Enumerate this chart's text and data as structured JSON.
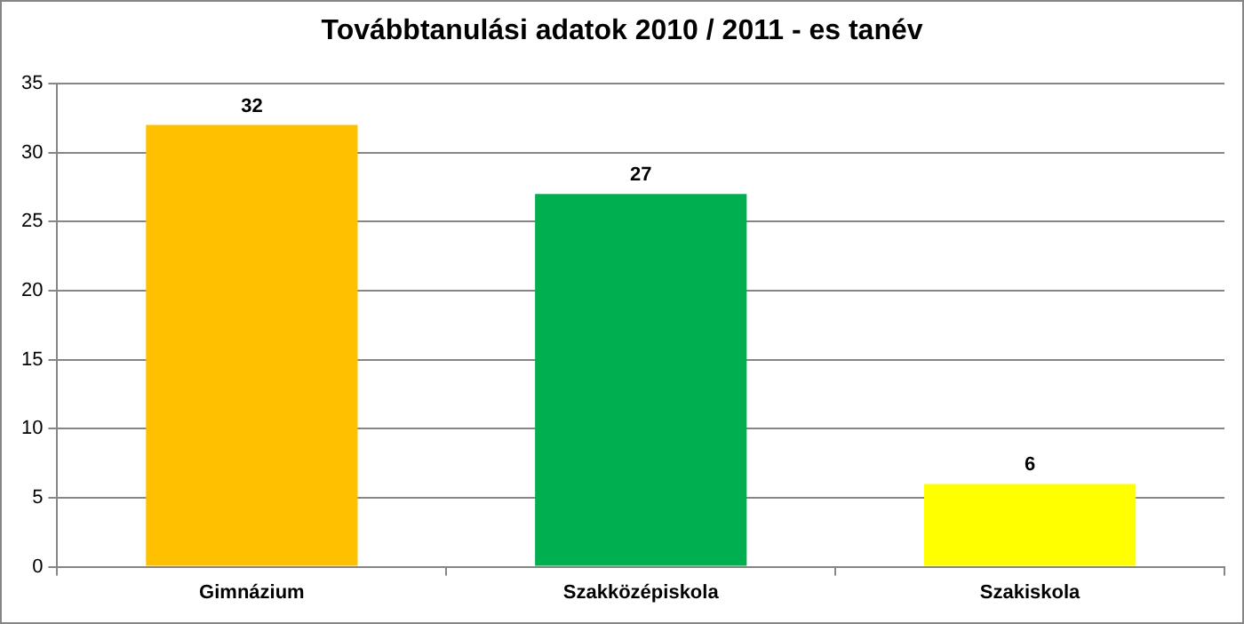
{
  "chart_data": {
    "type": "bar",
    "title": "Továbbtanulási adatok 2010 / 2011 - es tanév",
    "categories": [
      "Gimnázium",
      "Szakközépiskola",
      "Szakiskola"
    ],
    "values": [
      32,
      27,
      6
    ],
    "colors": [
      "#ffc000",
      "#00b050",
      "#ffff00"
    ],
    "ylim": [
      0,
      35
    ],
    "yticks": [
      0,
      5,
      10,
      15,
      20,
      25,
      30,
      35
    ],
    "grid": "y",
    "legend": false,
    "data_labels": true
  }
}
